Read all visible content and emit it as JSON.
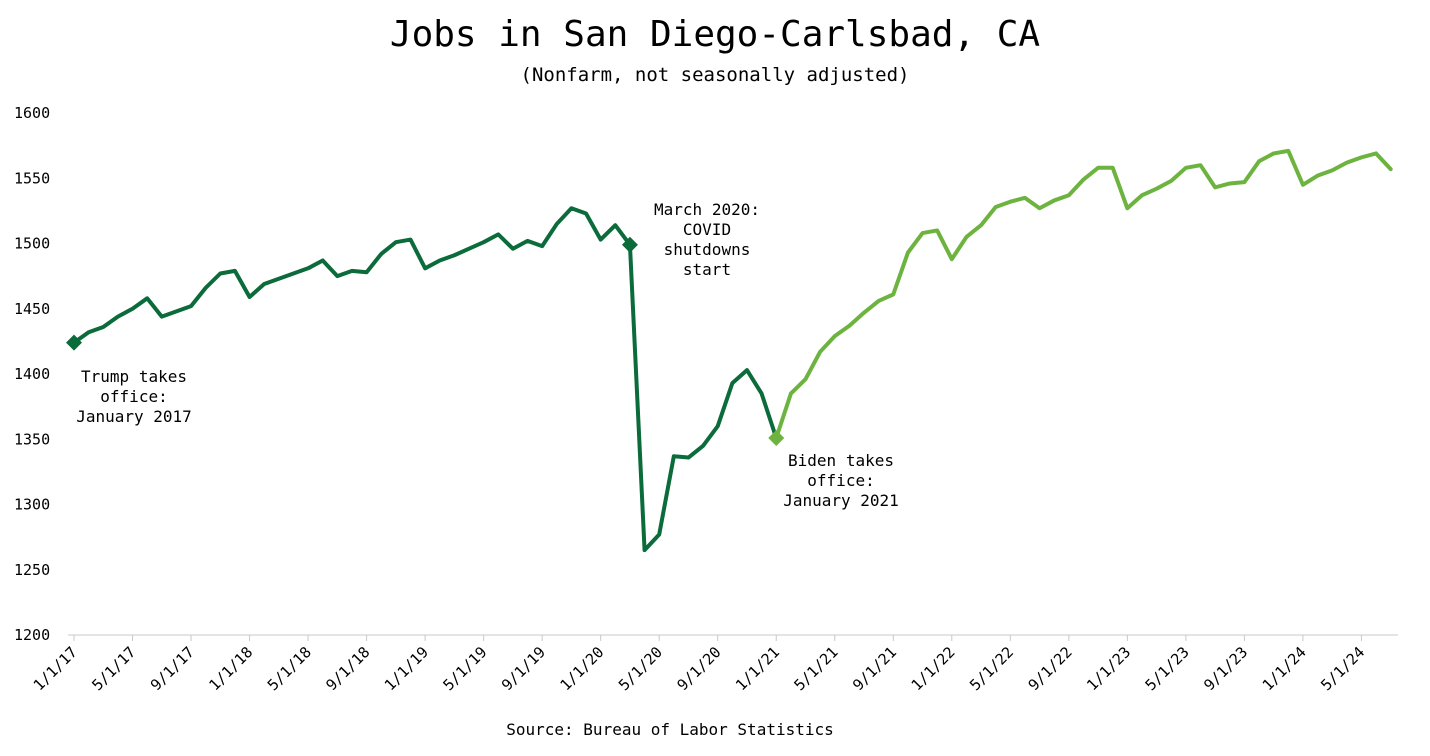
{
  "chart_data": {
    "type": "line",
    "title": "Jobs in San Diego-Carlsbad, CA",
    "subtitle": "(Nonfarm, not seasonally adjusted)",
    "source": "Source: Bureau of Labor Statistics",
    "ylim": [
      1200,
      1600
    ],
    "y_ticks": [
      "1200",
      "1250",
      "1300",
      "1350",
      "1400",
      "1450",
      "1500",
      "1550",
      "1600"
    ],
    "x_tick_labels": [
      "1/1/17",
      "5/1/17",
      "9/1/17",
      "1/1/18",
      "5/1/18",
      "9/1/18",
      "1/1/19",
      "5/1/19",
      "9/1/19",
      "1/1/20",
      "5/1/20",
      "9/1/20",
      "1/1/21",
      "5/1/21",
      "9/1/21",
      "1/1/22",
      "5/1/22",
      "9/1/22",
      "1/1/23",
      "5/1/23",
      "9/1/23",
      "1/1/24",
      "5/1/24"
    ],
    "x_start": "2017-01",
    "grid": false,
    "colors": {
      "trump": "#0b6b3a",
      "biden": "#6db33f"
    },
    "series": [
      {
        "start": "2017-01",
        "values": [
          1424,
          1432,
          1436,
          1444,
          1450,
          1458,
          1444,
          1448,
          1452,
          1466,
          1477,
          1479,
          1459,
          1469,
          1473,
          1477,
          1481,
          1487,
          1475,
          1479,
          1478,
          1492,
          1501,
          1503,
          1481,
          1487,
          1491,
          1496,
          1501,
          1507,
          1496,
          1502,
          1498,
          1515,
          1527,
          1523,
          1503,
          1514,
          1499,
          1265,
          1277,
          1337,
          1336,
          1345,
          1360,
          1393,
          1403,
          1385,
          1351
        ]
      },
      {
        "start": "2021-01",
        "values": [
          1351,
          1385,
          1396,
          1417,
          1429,
          1437,
          1447,
          1456,
          1461,
          1493,
          1508,
          1510,
          1488,
          1505,
          1514,
          1528,
          1532,
          1535,
          1527,
          1533,
          1537,
          1549,
          1558,
          1558,
          1527,
          1537,
          1542,
          1548,
          1558,
          1560,
          1543,
          1546,
          1547,
          1563,
          1569,
          1571,
          1545,
          1552,
          1556,
          1562,
          1566,
          1569,
          1557
        ]
      }
    ],
    "markers": [
      {
        "date": "2017-01",
        "value": 1424,
        "shape": "diamond",
        "color": "#0b6b3a"
      },
      {
        "date": "2020-03",
        "value": 1499,
        "shape": "diamond",
        "color": "#0b6b3a"
      },
      {
        "date": "2021-01",
        "value": 1351,
        "shape": "diamond",
        "color": "#6db33f"
      }
    ],
    "annotations": [
      {
        "lines": [
          "Trump takes",
          "office:",
          "January 2017"
        ]
      },
      {
        "lines": [
          "March 2020:",
          "COVID",
          "shutdowns",
          "start"
        ]
      },
      {
        "lines": [
          "Biden takes",
          "office:",
          "January 2021"
        ]
      }
    ]
  }
}
